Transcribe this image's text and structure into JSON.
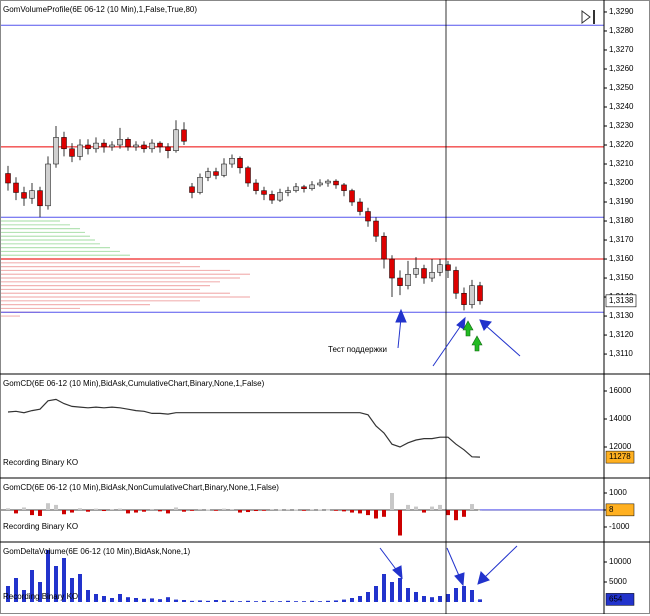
{
  "chart_data": [
    {
      "type": "candlestick",
      "title": "GomVolumeProfile(6E 06-12 (10 Min),1,False,True,80)",
      "annotation": "Тест поддержки",
      "open": [
        1.3205,
        1.32,
        1.3195,
        1.3192,
        1.3196,
        1.3188,
        1.321,
        1.3224,
        1.3218,
        1.3214,
        1.322,
        1.3218,
        1.3221,
        1.3219,
        1.322,
        1.3223,
        1.3219,
        1.322,
        1.3218,
        1.3221,
        1.3219,
        1.3217,
        1.3228,
        1.3198,
        1.3195,
        1.3203,
        1.3206,
        1.3204,
        1.321,
        1.3213,
        1.3208,
        1.32,
        1.3196,
        1.3194,
        1.3191,
        1.3195,
        1.3196,
        1.3198,
        1.3197,
        1.3199,
        1.32,
        1.3201,
        1.3199,
        1.3196,
        1.319,
        1.3185,
        1.318,
        1.3172,
        1.316,
        1.315,
        1.3146,
        1.3152,
        1.3155,
        1.315,
        1.3153,
        1.3157,
        1.3154,
        1.3142,
        1.3136,
        1.3146
      ],
      "high": [
        1.3209,
        1.3203,
        1.3198,
        1.32,
        1.3198,
        1.3214,
        1.323,
        1.3227,
        1.3221,
        1.3223,
        1.3223,
        1.3224,
        1.3223,
        1.3222,
        1.3229,
        1.3224,
        1.3222,
        1.3222,
        1.3223,
        1.3222,
        1.3221,
        1.3233,
        1.3232,
        1.32,
        1.3205,
        1.3208,
        1.3208,
        1.3213,
        1.3215,
        1.3214,
        1.3209,
        1.3202,
        1.3198,
        1.3196,
        1.3197,
        1.3198,
        1.32,
        1.3199,
        1.3201,
        1.3202,
        1.3202,
        1.3202,
        1.32,
        1.3197,
        1.3192,
        1.3187,
        1.3182,
        1.3174,
        1.3162,
        1.3154,
        1.3159,
        1.3161,
        1.3157,
        1.316,
        1.316,
        1.3159,
        1.3156,
        1.3145,
        1.3149,
        1.3148
      ],
      "low": [
        1.3196,
        1.3191,
        1.3188,
        1.3189,
        1.3182,
        1.3186,
        1.3208,
        1.3214,
        1.3211,
        1.3212,
        1.3215,
        1.3216,
        1.3216,
        1.3217,
        1.3218,
        1.3217,
        1.3217,
        1.3216,
        1.3216,
        1.3216,
        1.3213,
        1.3216,
        1.322,
        1.3192,
        1.3194,
        1.3201,
        1.3202,
        1.3203,
        1.3208,
        1.3205,
        1.3198,
        1.3194,
        1.3191,
        1.3189,
        1.319,
        1.3193,
        1.3195,
        1.3195,
        1.3196,
        1.3198,
        1.3198,
        1.3197,
        1.3193,
        1.3188,
        1.3183,
        1.3177,
        1.3169,
        1.3155,
        1.314,
        1.3141,
        1.3144,
        1.315,
        1.3147,
        1.3148,
        1.3151,
        1.315,
        1.3139,
        1.3133,
        1.3134,
        1.3136
      ],
      "close": [
        1.32,
        1.3195,
        1.3192,
        1.3196,
        1.3188,
        1.321,
        1.3224,
        1.3218,
        1.3214,
        1.322,
        1.3218,
        1.3221,
        1.3219,
        1.322,
        1.3223,
        1.3219,
        1.322,
        1.3218,
        1.3221,
        1.3219,
        1.3217,
        1.3228,
        1.3222,
        1.3195,
        1.3203,
        1.3206,
        1.3204,
        1.321,
        1.3213,
        1.3208,
        1.32,
        1.3196,
        1.3194,
        1.3191,
        1.3195,
        1.3196,
        1.3198,
        1.3197,
        1.3199,
        1.32,
        1.3201,
        1.3199,
        1.3196,
        1.319,
        1.3185,
        1.318,
        1.3172,
        1.316,
        1.315,
        1.3146,
        1.3152,
        1.3155,
        1.315,
        1.3153,
        1.3157,
        1.3154,
        1.3142,
        1.3136,
        1.3146,
        1.3138
      ],
      "up_color": "#d0d0d0",
      "down_color": "#dd0000",
      "levels": [
        {
          "value": 1.3283,
          "color": "#5555ee"
        },
        {
          "value": 1.3219,
          "color": "#ee0000"
        },
        {
          "value": 1.3182,
          "color": "#5555ee"
        },
        {
          "value": 1.316,
          "color": "#ee0000"
        },
        {
          "value": 1.3132,
          "color": "#5555ee"
        }
      ],
      "profile_upper": {
        "prices": [
          1.318,
          1.3178,
          1.3176,
          1.3174,
          1.3172,
          1.317,
          1.3168,
          1.3166,
          1.3164,
          1.3162
        ],
        "values": [
          60,
          70,
          80,
          85,
          90,
          95,
          100,
          110,
          120,
          130
        ],
        "color": "#b5e3b5"
      },
      "profile_lower": {
        "prices": [
          1.316,
          1.3158,
          1.3156,
          1.3154,
          1.3152,
          1.315,
          1.3148,
          1.3146,
          1.3144,
          1.3142,
          1.314,
          1.3138,
          1.3136,
          1.3134,
          1.3132,
          1.313
        ],
        "values": [
          140,
          180,
          200,
          230,
          250,
          240,
          220,
          210,
          200,
          230,
          250,
          200,
          150,
          80,
          40,
          20
        ],
        "color": "#f2b4b4"
      },
      "last": {
        "value": 1.3138,
        "label": "1,3138"
      },
      "last_color": "#ffffff",
      "ylim": [
        1.30995,
        1.32963
      ],
      "yticks": [
        {
          "value": 1.311,
          "label": "1,3110"
        },
        {
          "value": 1.312,
          "label": "1,3120"
        },
        {
          "value": 1.313,
          "label": "1,3130"
        },
        {
          "value": 1.314,
          "label": "1,3140"
        },
        {
          "value": 1.315,
          "label": "1,3150"
        },
        {
          "value": 1.316,
          "label": "1,3160"
        },
        {
          "value": 1.317,
          "label": "1,3170"
        },
        {
          "value": 1.318,
          "label": "1,3180"
        },
        {
          "value": 1.319,
          "label": "1,3190"
        },
        {
          "value": 1.32,
          "label": "1,3200"
        },
        {
          "value": 1.321,
          "label": "1,3210"
        },
        {
          "value": 1.322,
          "label": "1,3220"
        },
        {
          "value": 1.323,
          "label": "1,3230"
        },
        {
          "value": 1.324,
          "label": "1,3240"
        },
        {
          "value": 1.325,
          "label": "1,3250"
        },
        {
          "value": 1.326,
          "label": "1,3260"
        },
        {
          "value": 1.327,
          "label": "1,3270"
        },
        {
          "value": 1.328,
          "label": "1,3280"
        },
        {
          "value": 1.329,
          "label": "1,3290"
        }
      ]
    },
    {
      "type": "line",
      "title": "GomCD(6E 06-12 (10 Min),BidAsk,CumulativeChart,Binary,None,1,False)",
      "status": "Recording Binary KO",
      "color": "#333333",
      "last_color": "#ffb020",
      "values": [
        14500,
        14550,
        14450,
        14600,
        14700,
        15300,
        15400,
        15100,
        14900,
        14850,
        14800,
        14850,
        14800,
        14850,
        14800,
        14700,
        14600,
        14550,
        14400,
        14400,
        14350,
        14450,
        14450,
        14450,
        14450,
        14450,
        14450,
        14450,
        14450,
        14450,
        14450,
        14450,
        14450,
        14450,
        14450,
        14450,
        14450,
        14450,
        14450,
        14450,
        14450,
        14450,
        14450,
        14450,
        14450,
        14300,
        13500,
        13000,
        12200,
        12000,
        12300,
        12500,
        12600,
        12600,
        12700,
        12700,
        12200,
        11800,
        11300,
        11278
      ],
      "ylim": [
        9786,
        17214
      ],
      "yticks": [
        12000,
        14000,
        16000
      ]
    },
    {
      "type": "bar",
      "title": "GomCD(6E 06-12 (10 Min),BidAsk,NonCumulativeChart,Binary,None,1,False)",
      "status": "Recording Binary KO",
      "up_color": "#c8c8c8",
      "down_color": "#cc0000",
      "last_color": "#ffb020",
      "values": [
        100,
        -200,
        150,
        -300,
        -350,
        400,
        300,
        -250,
        -150,
        100,
        -100,
        80,
        -60,
        50,
        80,
        -200,
        -150,
        -100,
        60,
        -80,
        -200,
        150,
        -100,
        -50,
        60,
        30,
        -40,
        80,
        50,
        -150,
        -120,
        -60,
        -40,
        50,
        30,
        40,
        30,
        -20,
        40,
        30,
        20,
        -30,
        -80,
        -150,
        -200,
        -300,
        -500,
        -400,
        1000,
        -1500,
        300,
        200,
        -150,
        200,
        300,
        -300,
        -600,
        -400,
        350,
        8
      ],
      "ylim": [
        -1882,
        1882
      ],
      "yticks": [
        1000,
        0,
        -1000
      ]
    },
    {
      "type": "bar",
      "title": "GomDeltaVolume(6E 06-12 (10 Min),BidAsk,None,1)",
      "status": "Recording Binary KO",
      "up_color": "#2233cc",
      "down_color": "#2233cc",
      "last_color": "#2233cc",
      "values": [
        4000,
        6000,
        3000,
        8000,
        5000,
        13000,
        9000,
        11000,
        6000,
        7000,
        3000,
        2000,
        1500,
        1000,
        2000,
        1200,
        1000,
        800,
        900,
        700,
        1200,
        600,
        500,
        300,
        400,
        300,
        500,
        400,
        300,
        200,
        300,
        200,
        300,
        200,
        200,
        300,
        200,
        200,
        300,
        200,
        300,
        400,
        600,
        1000,
        1500,
        2500,
        4000,
        7000,
        5000,
        6000,
        3500,
        2500,
        1500,
        1200,
        1500,
        2000,
        3500,
        4000,
        3000,
        654
      ],
      "ylim": [
        -2500,
        15000
      ],
      "yticks": [
        10000,
        5000
      ]
    }
  ]
}
